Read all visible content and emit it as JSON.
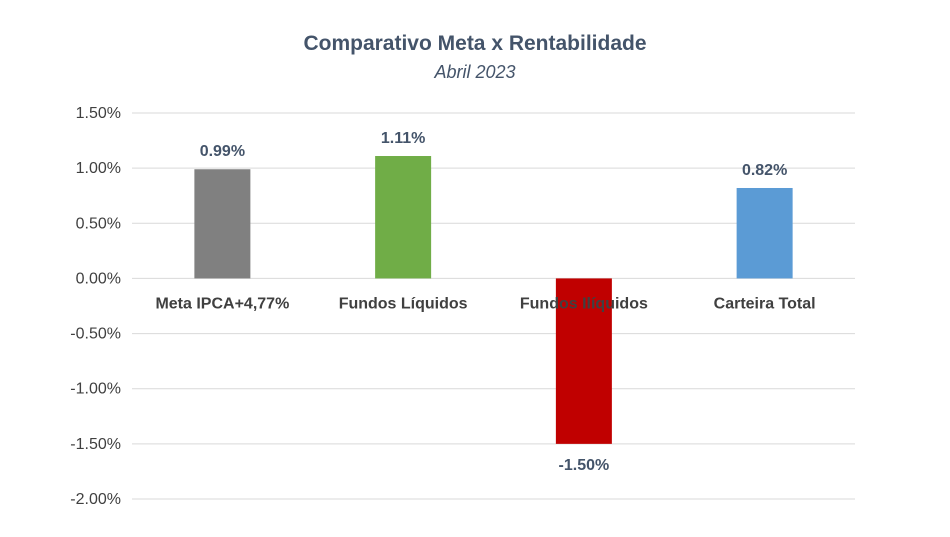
{
  "chart_data": {
    "type": "bar",
    "title": "Comparativo Meta x Rentabilidade",
    "subtitle": "Abril 2023",
    "xlabel": "",
    "ylabel": "",
    "categories": [
      "Meta IPCA+4,77%",
      "Fundos Líquidos",
      "Fundos Ilíquidos",
      "Carteira Total"
    ],
    "values": [
      0.99,
      1.11,
      -1.5,
      0.82
    ],
    "value_labels": [
      "0.99%",
      "1.11%",
      "-1.50%",
      "0.82%"
    ],
    "colors": [
      "#808080",
      "#70ad47",
      "#c00000",
      "#5b9bd5"
    ],
    "ylim": [
      -2.0,
      1.5
    ],
    "yticks": [
      1.5,
      1.0,
      0.5,
      0.0,
      -0.5,
      -1.0,
      -1.5,
      -2.0
    ],
    "ytick_labels": [
      "1.50%",
      "1.00%",
      "0.50%",
      "0.00%",
      "-0.50%",
      "-1.00%",
      "-1.50%",
      "-2.00%"
    ],
    "grid": true,
    "legend": "none"
  }
}
